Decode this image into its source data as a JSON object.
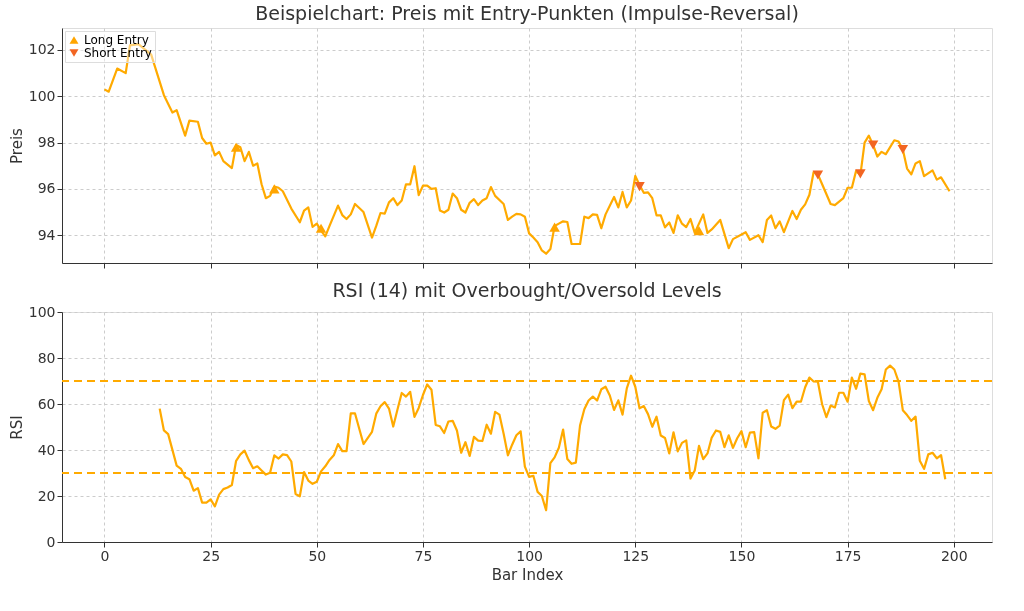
{
  "chart_data": [
    {
      "type": "line",
      "title": "Beispielchart: Preis mit Entry-Punkten (Impulse-Reversal)",
      "ylabel": "Preis",
      "xlim": [
        -10,
        209
      ],
      "ylim": [
        92.8,
        102.95
      ],
      "xticks": [
        0,
        25,
        50,
        75,
        100,
        125,
        150,
        175,
        200
      ],
      "yticks": [
        94,
        96,
        98,
        100,
        102
      ],
      "tick_labels": "y",
      "grid": true,
      "legend": "top left",
      "line_style": "solid",
      "series": [
        {
          "color": "#ffaa00",
          "x": [
            0,
            1,
            3,
            5,
            6,
            8,
            11,
            14,
            16,
            17,
            19,
            20,
            22,
            23,
            24,
            25,
            26,
            27,
            28,
            30,
            31,
            32,
            33,
            34,
            35,
            36,
            37,
            38,
            39,
            40,
            41,
            42,
            44,
            46,
            47,
            48,
            49,
            50,
            51,
            52,
            53,
            55,
            56,
            57,
            58,
            59,
            61,
            63,
            64,
            65,
            66,
            67,
            68,
            69,
            70,
            71,
            72,
            73,
            74,
            75,
            76,
            77,
            78,
            79,
            80,
            81,
            82,
            83,
            84,
            85,
            86,
            87,
            88,
            89,
            90,
            91,
            92,
            94,
            95,
            96,
            97,
            98,
            99,
            100,
            101,
            102,
            103,
            104,
            105,
            106,
            107,
            108,
            109,
            110,
            112,
            113,
            114,
            115,
            116,
            117,
            118,
            120,
            121,
            122,
            123,
            124,
            125,
            126,
            127,
            128,
            129,
            130,
            131,
            132,
            133,
            134,
            135,
            136,
            137,
            138,
            139,
            141,
            142,
            143,
            145,
            147,
            148,
            151,
            152,
            154,
            155,
            156,
            157,
            158,
            159,
            160,
            162,
            163,
            164,
            165,
            166,
            167,
            168,
            169,
            171,
            172,
            174,
            175,
            176,
            177,
            178,
            179,
            180,
            181,
            182,
            183,
            184,
            186,
            187,
            188,
            189,
            190,
            191,
            192,
            193,
            195,
            196,
            197,
            199
          ],
          "values": [
            100.3,
            100.2,
            101.2,
            101.0,
            102.2,
            102.25,
            101.8,
            100.05,
            99.3,
            99.4,
            98.3,
            98.95,
            98.9,
            98.2,
            97.95,
            98.0,
            97.45,
            97.6,
            97.2,
            96.9,
            97.9,
            97.8,
            97.2,
            97.6,
            97.0,
            97.1,
            96.2,
            95.6,
            95.7,
            96.1,
            96.05,
            95.9,
            95.15,
            94.56,
            95.06,
            95.2,
            94.36,
            94.5,
            94.2,
            93.95,
            94.4,
            95.28,
            94.87,
            94.7,
            94.9,
            95.35,
            95.0,
            93.9,
            94.4,
            94.96,
            94.93,
            95.42,
            95.6,
            95.3,
            95.5,
            96.2,
            96.2,
            96.98,
            95.73,
            96.14,
            96.14,
            96.0,
            96.03,
            95.07,
            94.98,
            95.1,
            95.8,
            95.6,
            95.1,
            94.98,
            95.4,
            95.56,
            95.3,
            95.5,
            95.6,
            96.08,
            95.7,
            95.35,
            94.66,
            94.8,
            94.92,
            94.9,
            94.8,
            94.08,
            93.9,
            93.7,
            93.34,
            93.2,
            93.4,
            94.4,
            94.5,
            94.6,
            94.57,
            93.62,
            93.62,
            94.8,
            94.74,
            94.9,
            94.88,
            94.3,
            94.9,
            95.65,
            95.2,
            95.87,
            95.2,
            95.5,
            96.56,
            96.17,
            95.83,
            95.85,
            95.6,
            94.86,
            94.86,
            94.34,
            94.55,
            94.1,
            94.86,
            94.5,
            94.35,
            94.7,
            94.1,
            94.9,
            94.1,
            94.25,
            94.66,
            93.44,
            93.83,
            94.13,
            93.8,
            94.0,
            93.7,
            94.66,
            94.85,
            94.3,
            94.6,
            94.13,
            95.05,
            94.7,
            95.1,
            95.33,
            95.75,
            96.73,
            96.63,
            96.2,
            95.35,
            95.3,
            95.6,
            96.05,
            96.05,
            96.78,
            96.6,
            98.0,
            98.3,
            97.9,
            97.4,
            97.6,
            97.5,
            98.1,
            98.05,
            97.7,
            96.88,
            96.63,
            97.1,
            97.2,
            96.55,
            96.8,
            96.4,
            96.5,
            95.9
          ]
        },
        {
          "type": "scatter",
          "name": "Long Entry",
          "color": "#ffa500",
          "marker": "triangle",
          "x": [
            31,
            40,
            51,
            106,
            140
          ],
          "values": [
            97.8,
            96.0,
            94.3,
            94.35,
            94.2
          ]
        },
        {
          "type": "scatter",
          "name": "Short Entry",
          "color": "#f26522",
          "marker": "triangle-down",
          "x": [
            126,
            168,
            178,
            181,
            188
          ],
          "values": [
            96.1,
            96.6,
            96.65,
            97.9,
            97.7
          ]
        }
      ]
    },
    {
      "type": "line",
      "title": "RSI (14) mit Overbought/Oversold Levels",
      "xlabel": "Bar Index",
      "ylabel": "RSI",
      "xlim": [
        -10,
        209
      ],
      "ylim": [
        0,
        100
      ],
      "xticks": [
        0,
        25,
        50,
        75,
        100,
        125,
        150,
        175,
        200
      ],
      "yticks": [
        0,
        20,
        40,
        60,
        80,
        100
      ],
      "grid": true,
      "line_style": "solid",
      "ref_lines": [
        {
          "axis": "y",
          "value": 70,
          "color": "#ffaa00",
          "line_style": "dashed"
        },
        {
          "axis": "y",
          "value": 30,
          "color": "#ffaa00",
          "line_style": "dashed"
        }
      ],
      "series": [
        {
          "color": "#ffaa00",
          "x": [
            13,
            14,
            15,
            17,
            18,
            19,
            20,
            21,
            22,
            23,
            24,
            25,
            26,
            27,
            28,
            29,
            30,
            31,
            32,
            33,
            34,
            35,
            36,
            37,
            38,
            39,
            40,
            41,
            42,
            43,
            44,
            45,
            46,
            47,
            48,
            49,
            50,
            51,
            52,
            53,
            54,
            55,
            56,
            57,
            58,
            59,
            61,
            63,
            64,
            65,
            66,
            67,
            68,
            69,
            70,
            71,
            72,
            73,
            74,
            75,
            76,
            77,
            78,
            79,
            80,
            81,
            82,
            83,
            84,
            85,
            86,
            87,
            88,
            89,
            90,
            91,
            92,
            93,
            94,
            95,
            96,
            97,
            98,
            99,
            100,
            101,
            102,
            103,
            104,
            105,
            106,
            107,
            108,
            109,
            110,
            111,
            112,
            113,
            114,
            115,
            116,
            117,
            118,
            119,
            120,
            121,
            122,
            123,
            124,
            125,
            126,
            127,
            128,
            129,
            130,
            131,
            132,
            133,
            134,
            135,
            136,
            137,
            138,
            139,
            140,
            141,
            142,
            143,
            144,
            145,
            146,
            147,
            148,
            149,
            150,
            151,
            152,
            153,
            154,
            155,
            156,
            157,
            158,
            159,
            160,
            161,
            162,
            163,
            164,
            165,
            166,
            167,
            168,
            169,
            170,
            171,
            172,
            173,
            174,
            175,
            176,
            177,
            178,
            179,
            180,
            181,
            182,
            183,
            184,
            185,
            186,
            187,
            188,
            189,
            190,
            191,
            192,
            193,
            194,
            195,
            196,
            197,
            198
          ],
          "values": [
            58.0,
            48.5,
            46.9,
            33.2,
            31.8,
            28.3,
            27.3,
            22.3,
            23.4,
            17.1,
            17.1,
            18.5,
            15.5,
            20.6,
            23.0,
            23.7,
            24.8,
            35.3,
            38.1,
            39.7,
            35.6,
            32.1,
            32.9,
            31.1,
            29.3,
            30.1,
            37.7,
            36.3,
            38.1,
            37.8,
            35.0,
            20.9,
            19.9,
            30.4,
            26.7,
            25.3,
            26.2,
            30.7,
            32.9,
            35.7,
            37.7,
            42.6,
            39.5,
            39.5,
            55.9,
            55.9,
            42.6,
            47.9,
            55.8,
            59.0,
            60.8,
            58.0,
            50.2,
            57.6,
            64.8,
            63.2,
            65.3,
            54.4,
            58.3,
            63.9,
            68.5,
            66.2,
            50.9,
            50.3,
            47.4,
            52.4,
            52.7,
            48.5,
            38.8,
            43.4,
            37.4,
            45.7,
            44.1,
            43.9,
            51.0,
            47.1,
            56.6,
            55.4,
            47.1,
            37.7,
            42.3,
            46.4,
            48.1,
            32.8,
            28.3,
            28.8,
            21.8,
            20.0,
            13.8,
            34.3,
            36.8,
            41.0,
            48.9,
            36.1,
            34.0,
            34.5,
            50.8,
            57.7,
            61.5,
            63.2,
            61.5,
            66.4,
            67.5,
            63.7,
            57.4,
            61.6,
            55.4,
            66.8,
            72.3,
            67.5,
            58.1,
            59.1,
            55.6,
            50.1,
            54.5,
            46.3,
            45.2,
            38.5,
            47.7,
            39.4,
            43.1,
            44.2,
            27.6,
            31.1,
            41.8,
            36.0,
            38.5,
            45.4,
            48.5,
            47.9,
            41.2,
            46.4,
            40.9,
            45.1,
            48.2,
            41.2,
            47.6,
            47.8,
            36.4,
            56.2,
            57.3,
            50.2,
            49.2,
            50.6,
            61.7,
            64.1,
            58.2,
            61.0,
            61.0,
            67.3,
            71.5,
            69.8,
            69.7,
            59.9,
            54.3,
            59.3,
            58.5,
            64.9,
            64.9,
            61.0,
            71.5,
            66.6,
            73.2,
            72.9,
            61.3,
            57.3,
            62.7,
            66.4,
            75.0,
            76.7,
            75.0,
            69.7,
            57.3,
            55.2,
            52.7,
            54.5,
            35.3,
            31.8,
            38.1,
            38.8,
            36.4,
            37.8,
            27.3
          ]
        }
      ]
    }
  ]
}
